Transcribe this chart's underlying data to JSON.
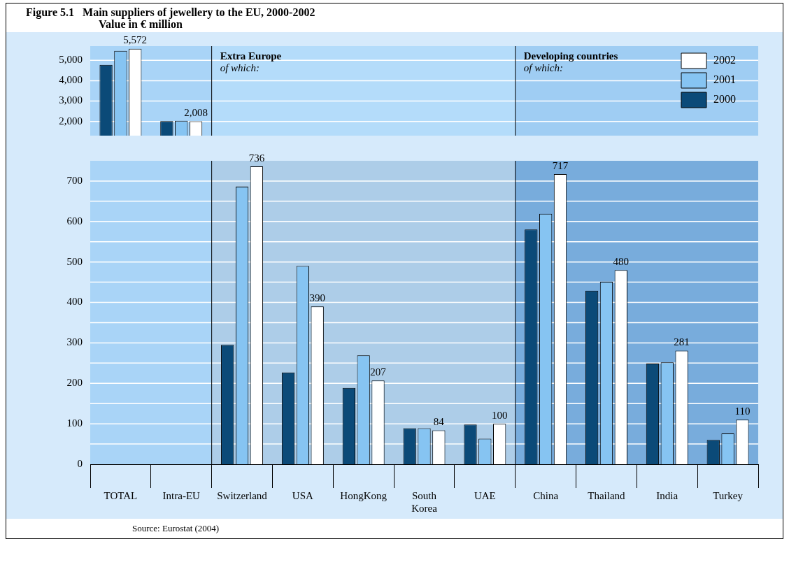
{
  "chart_data": [
    {
      "type": "bar",
      "title": "Figure 5.1   Main suppliers of jewellery to the EU, 2000-2002",
      "subtitle": "Value in € million",
      "categories": [
        "TOTAL",
        "Intra-EU",
        "Switzerland",
        "USA",
        "HongKong",
        "South Korea",
        "UAE",
        "China",
        "Thailand",
        "India",
        "Turkey"
      ],
      "series": [
        {
          "name": "2000",
          "color": "#0b4a78",
          "values": [
            4780,
            2010,
            null,
            null,
            null,
            null,
            null,
            null,
            null,
            null,
            null
          ]
        },
        {
          "name": "2001",
          "color": "#86c4f2",
          "values": [
            5470,
            2030,
            null,
            null,
            null,
            null,
            null,
            null,
            null,
            null,
            null
          ]
        },
        {
          "name": "2002",
          "color": "#ffffff",
          "values": [
            5572,
            2008,
            null,
            null,
            null,
            null,
            null,
            null,
            null,
            null,
            null
          ],
          "value_labels": [
            "5,572",
            "2,008",
            null,
            null,
            null,
            null,
            null,
            null,
            null,
            null,
            null
          ]
        }
      ],
      "ylim": [
        1300,
        5700
      ],
      "yticks": [
        {
          "value": 2000,
          "label": "2,000"
        },
        {
          "value": 3000,
          "label": "3,000"
        },
        {
          "value": 4000,
          "label": "4,000"
        },
        {
          "value": 5000,
          "label": "5,000"
        }
      ],
      "grid": "y",
      "tick_labels": "y",
      "legend": "top right",
      "bands": [
        {
          "axis": "x",
          "from": "Switzerland",
          "to": "UAE",
          "label": "Extra Europe",
          "color": "#b4dcfa"
        },
        {
          "axis": "x",
          "from": "China",
          "to": "Turkey",
          "label": "Developing countries",
          "color": "#9fcdf3"
        }
      ],
      "annotations": [
        "of which:",
        "of which:"
      ]
    },
    {
      "type": "bar",
      "categories": [
        "TOTAL",
        "Intra-EU",
        "Switzerland",
        "USA",
        "HongKong",
        "South Korea",
        "UAE",
        "China",
        "Thailand",
        "India",
        "Turkey"
      ],
      "series": [
        {
          "name": "2000",
          "color": "#0b4a78",
          "values": [
            null,
            null,
            295,
            227,
            189,
            89,
            98,
            580,
            429,
            249,
            60
          ]
        },
        {
          "name": "2001",
          "color": "#86c4f2",
          "values": [
            null,
            null,
            686,
            490,
            269,
            89,
            63,
            619,
            451,
            252,
            76
          ]
        },
        {
          "name": "2002",
          "color": "#ffffff",
          "values": [
            null,
            null,
            736,
            390,
            207,
            84,
            100,
            717,
            480,
            281,
            110
          ],
          "value_labels": [
            null,
            null,
            "736",
            "390",
            "207",
            "84",
            "100",
            "717",
            "480",
            "281",
            "110"
          ]
        }
      ],
      "ylim": [
        0,
        750
      ],
      "yticks": [
        0,
        {
          "value": 50,
          "label": null
        },
        100,
        {
          "value": 150,
          "label": null
        },
        200,
        {
          "value": 250,
          "label": null
        },
        300,
        {
          "value": 350,
          "label": null
        },
        400,
        {
          "value": 450,
          "label": null
        },
        500,
        {
          "value": 550,
          "label": null
        },
        600,
        {
          "value": 650,
          "label": null
        },
        700
      ],
      "grid": "y",
      "bands": [
        {
          "axis": "x",
          "from": "Switzerland",
          "to": "UAE",
          "color": "#adcde8"
        },
        {
          "axis": "x",
          "from": "China",
          "to": "Turkey",
          "color": "#78acdc"
        }
      ],
      "annotations": [
        "Source: Eurostat (2004)"
      ]
    }
  ]
}
